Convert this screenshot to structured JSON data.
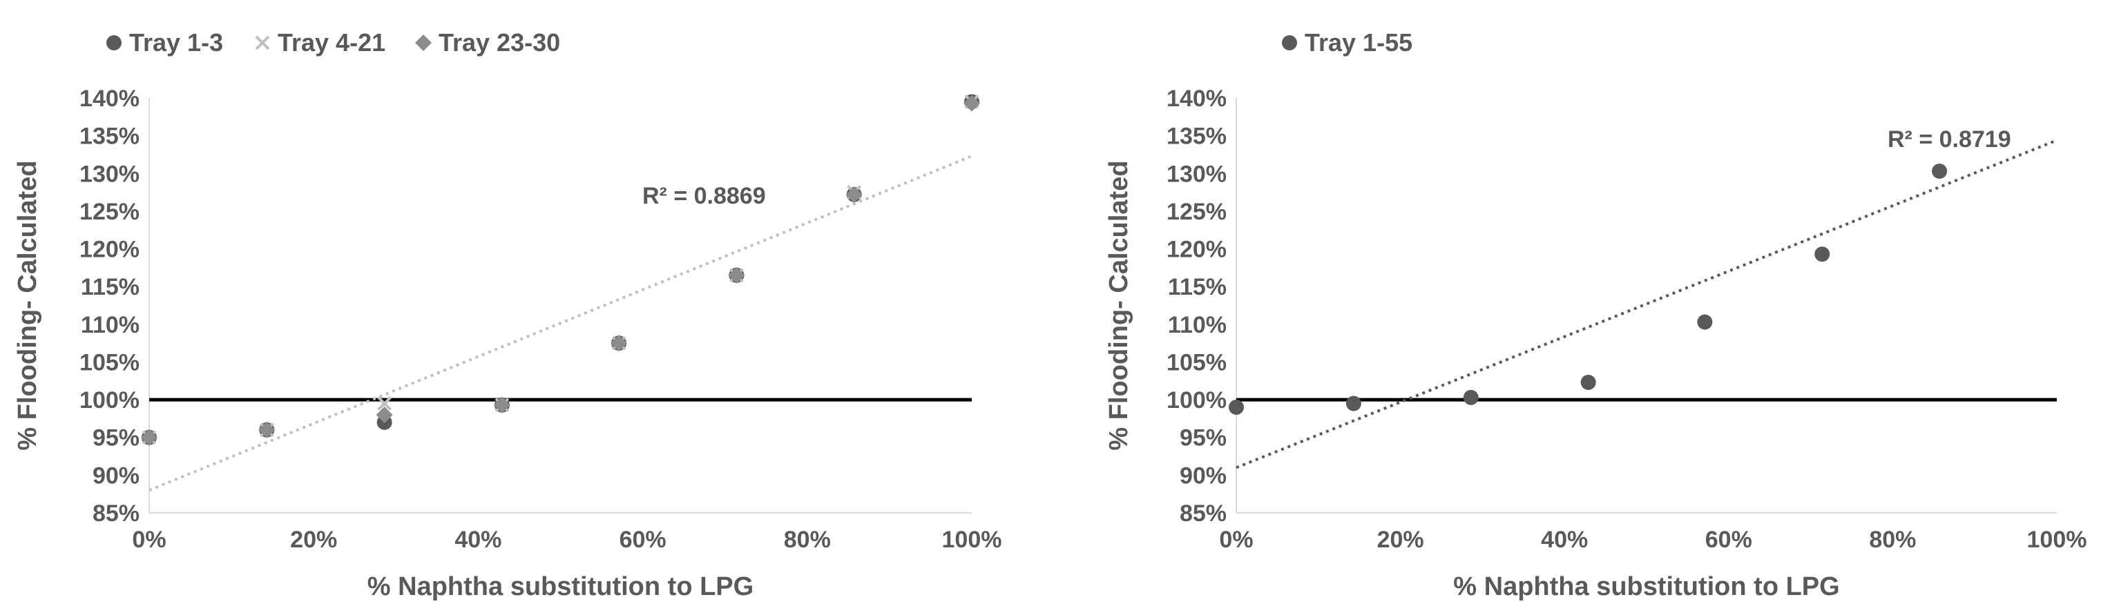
{
  "chart_data": [
    {
      "type": "scatter",
      "xlabel": "% Naphtha substitution to LPG",
      "ylabel": "% Flooding- Calculated",
      "xlim": [
        0,
        100
      ],
      "ylim": [
        85,
        140
      ],
      "x_ticks": [
        "0%",
        "20%",
        "40%",
        "60%",
        "80%",
        "100%"
      ],
      "y_ticks": [
        "85%",
        "90%",
        "95%",
        "100%",
        "105%",
        "110%",
        "115%",
        "120%",
        "125%",
        "130%",
        "135%",
        "140%"
      ],
      "legend_position": "top-left",
      "reference_line_y": 100,
      "series": [
        {
          "name": "Tray 1-3",
          "marker": "circle",
          "color": "#595959",
          "x": [
            0,
            14.3,
            28.6,
            42.9,
            57.1,
            71.4,
            85.7,
            100
          ],
          "y": [
            95,
            96,
            97,
            99.3,
            107.5,
            116.5,
            127.2,
            139.5
          ]
        },
        {
          "name": "Tray 4-21",
          "marker": "x",
          "color": "#bfbfbf",
          "x": [
            0,
            14.3,
            28.6,
            42.9,
            57.1,
            71.4,
            85.7,
            100
          ],
          "y": [
            95,
            96,
            99.5,
            99.3,
            107.5,
            116.5,
            127.5,
            139.5
          ]
        },
        {
          "name": "Tray 23-30",
          "marker": "diamond",
          "color": "#8c8c8c",
          "x": [
            0,
            14.3,
            28.6,
            42.9,
            57.1,
            71.4,
            85.7,
            100
          ],
          "y": [
            95,
            96,
            98,
            99.3,
            107.5,
            116.5,
            127.2,
            139.3
          ]
        }
      ],
      "trendline": {
        "style": "dotted",
        "color": "#bfbfbf",
        "x": [
          0,
          100
        ],
        "y": [
          88,
          132.3
        ],
        "r2_label": "R² = 0.8869"
      }
    },
    {
      "type": "scatter",
      "xlabel": "% Naphtha substitution to LPG",
      "ylabel": "% Flooding- Calculated",
      "xlim": [
        0,
        100
      ],
      "ylim": [
        85,
        140
      ],
      "x_ticks": [
        "0%",
        "20%",
        "40%",
        "60%",
        "80%",
        "100%"
      ],
      "y_ticks": [
        "85%",
        "90%",
        "95%",
        "100%",
        "105%",
        "110%",
        "115%",
        "120%",
        "125%",
        "130%",
        "135%",
        "140%"
      ],
      "legend_position": "top-left",
      "reference_line_y": 100,
      "series": [
        {
          "name": "Tray 1-55",
          "marker": "circle",
          "color": "#595959",
          "x": [
            0,
            14.3,
            28.6,
            42.9,
            57.1,
            71.4,
            85.7
          ],
          "y": [
            99,
            99.5,
            100.3,
            102.3,
            110.3,
            119.3,
            130.3
          ]
        }
      ],
      "trendline": {
        "style": "dotted",
        "color": "#595959",
        "x": [
          0,
          100
        ],
        "y": [
          91,
          134.4
        ],
        "r2_label": "R² = 0.8719"
      }
    }
  ]
}
